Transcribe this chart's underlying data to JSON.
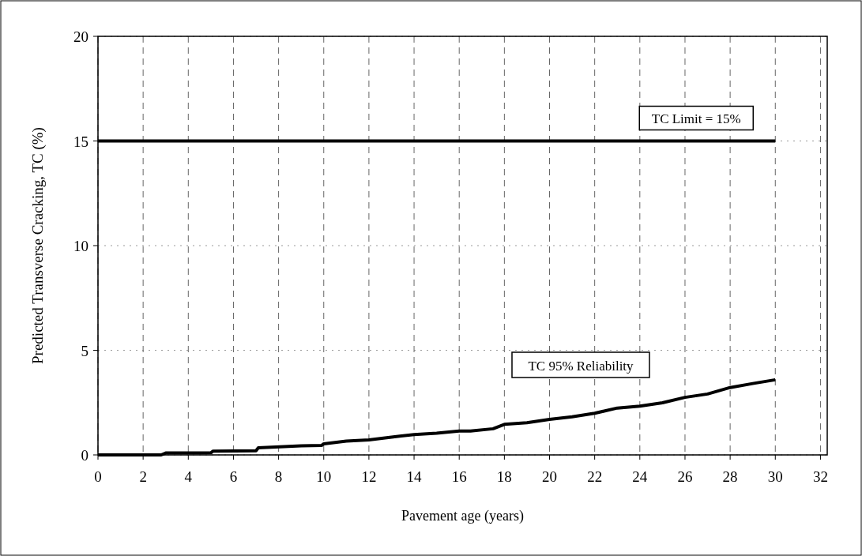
{
  "chart_data": {
    "type": "line",
    "xlabel": "Pavement age (years)",
    "ylabel": "Predicted Transverse Cracking, TC (%)",
    "xlim": [
      0,
      32.3
    ],
    "xticks": [
      0,
      2,
      4,
      6,
      8,
      10,
      12,
      14,
      16,
      18,
      20,
      22,
      24,
      26,
      28,
      30,
      32
    ],
    "ylim": [
      0,
      20
    ],
    "yticks": [
      0,
      5,
      10,
      15,
      20
    ],
    "grid": true,
    "series": [
      {
        "color": "#000000",
        "x": [
          0,
          2.8,
          3,
          5,
          5.1,
          7,
          7.1,
          9,
          9.9,
          10,
          11,
          12,
          13,
          14,
          15,
          16,
          16.5,
          17.5,
          18,
          19,
          20,
          21,
          22,
          23,
          24,
          25,
          26,
          27,
          28,
          29,
          30
        ],
        "values": [
          0,
          0,
          0.09,
          0.1,
          0.18,
          0.2,
          0.34,
          0.43,
          0.45,
          0.53,
          0.66,
          0.72,
          0.85,
          0.97,
          1.04,
          1.14,
          1.14,
          1.25,
          1.46,
          1.54,
          1.7,
          1.82,
          1.99,
          2.24,
          2.33,
          2.49,
          2.75,
          2.91,
          3.22,
          3.41,
          3.59
        ]
      }
    ],
    "ref_lines": [
      {
        "axis": "y",
        "value": 15,
        "label": "TC Limit = 15%",
        "color": "#000000"
      }
    ],
    "annotations": [
      "TC 95% Reliability"
    ]
  }
}
